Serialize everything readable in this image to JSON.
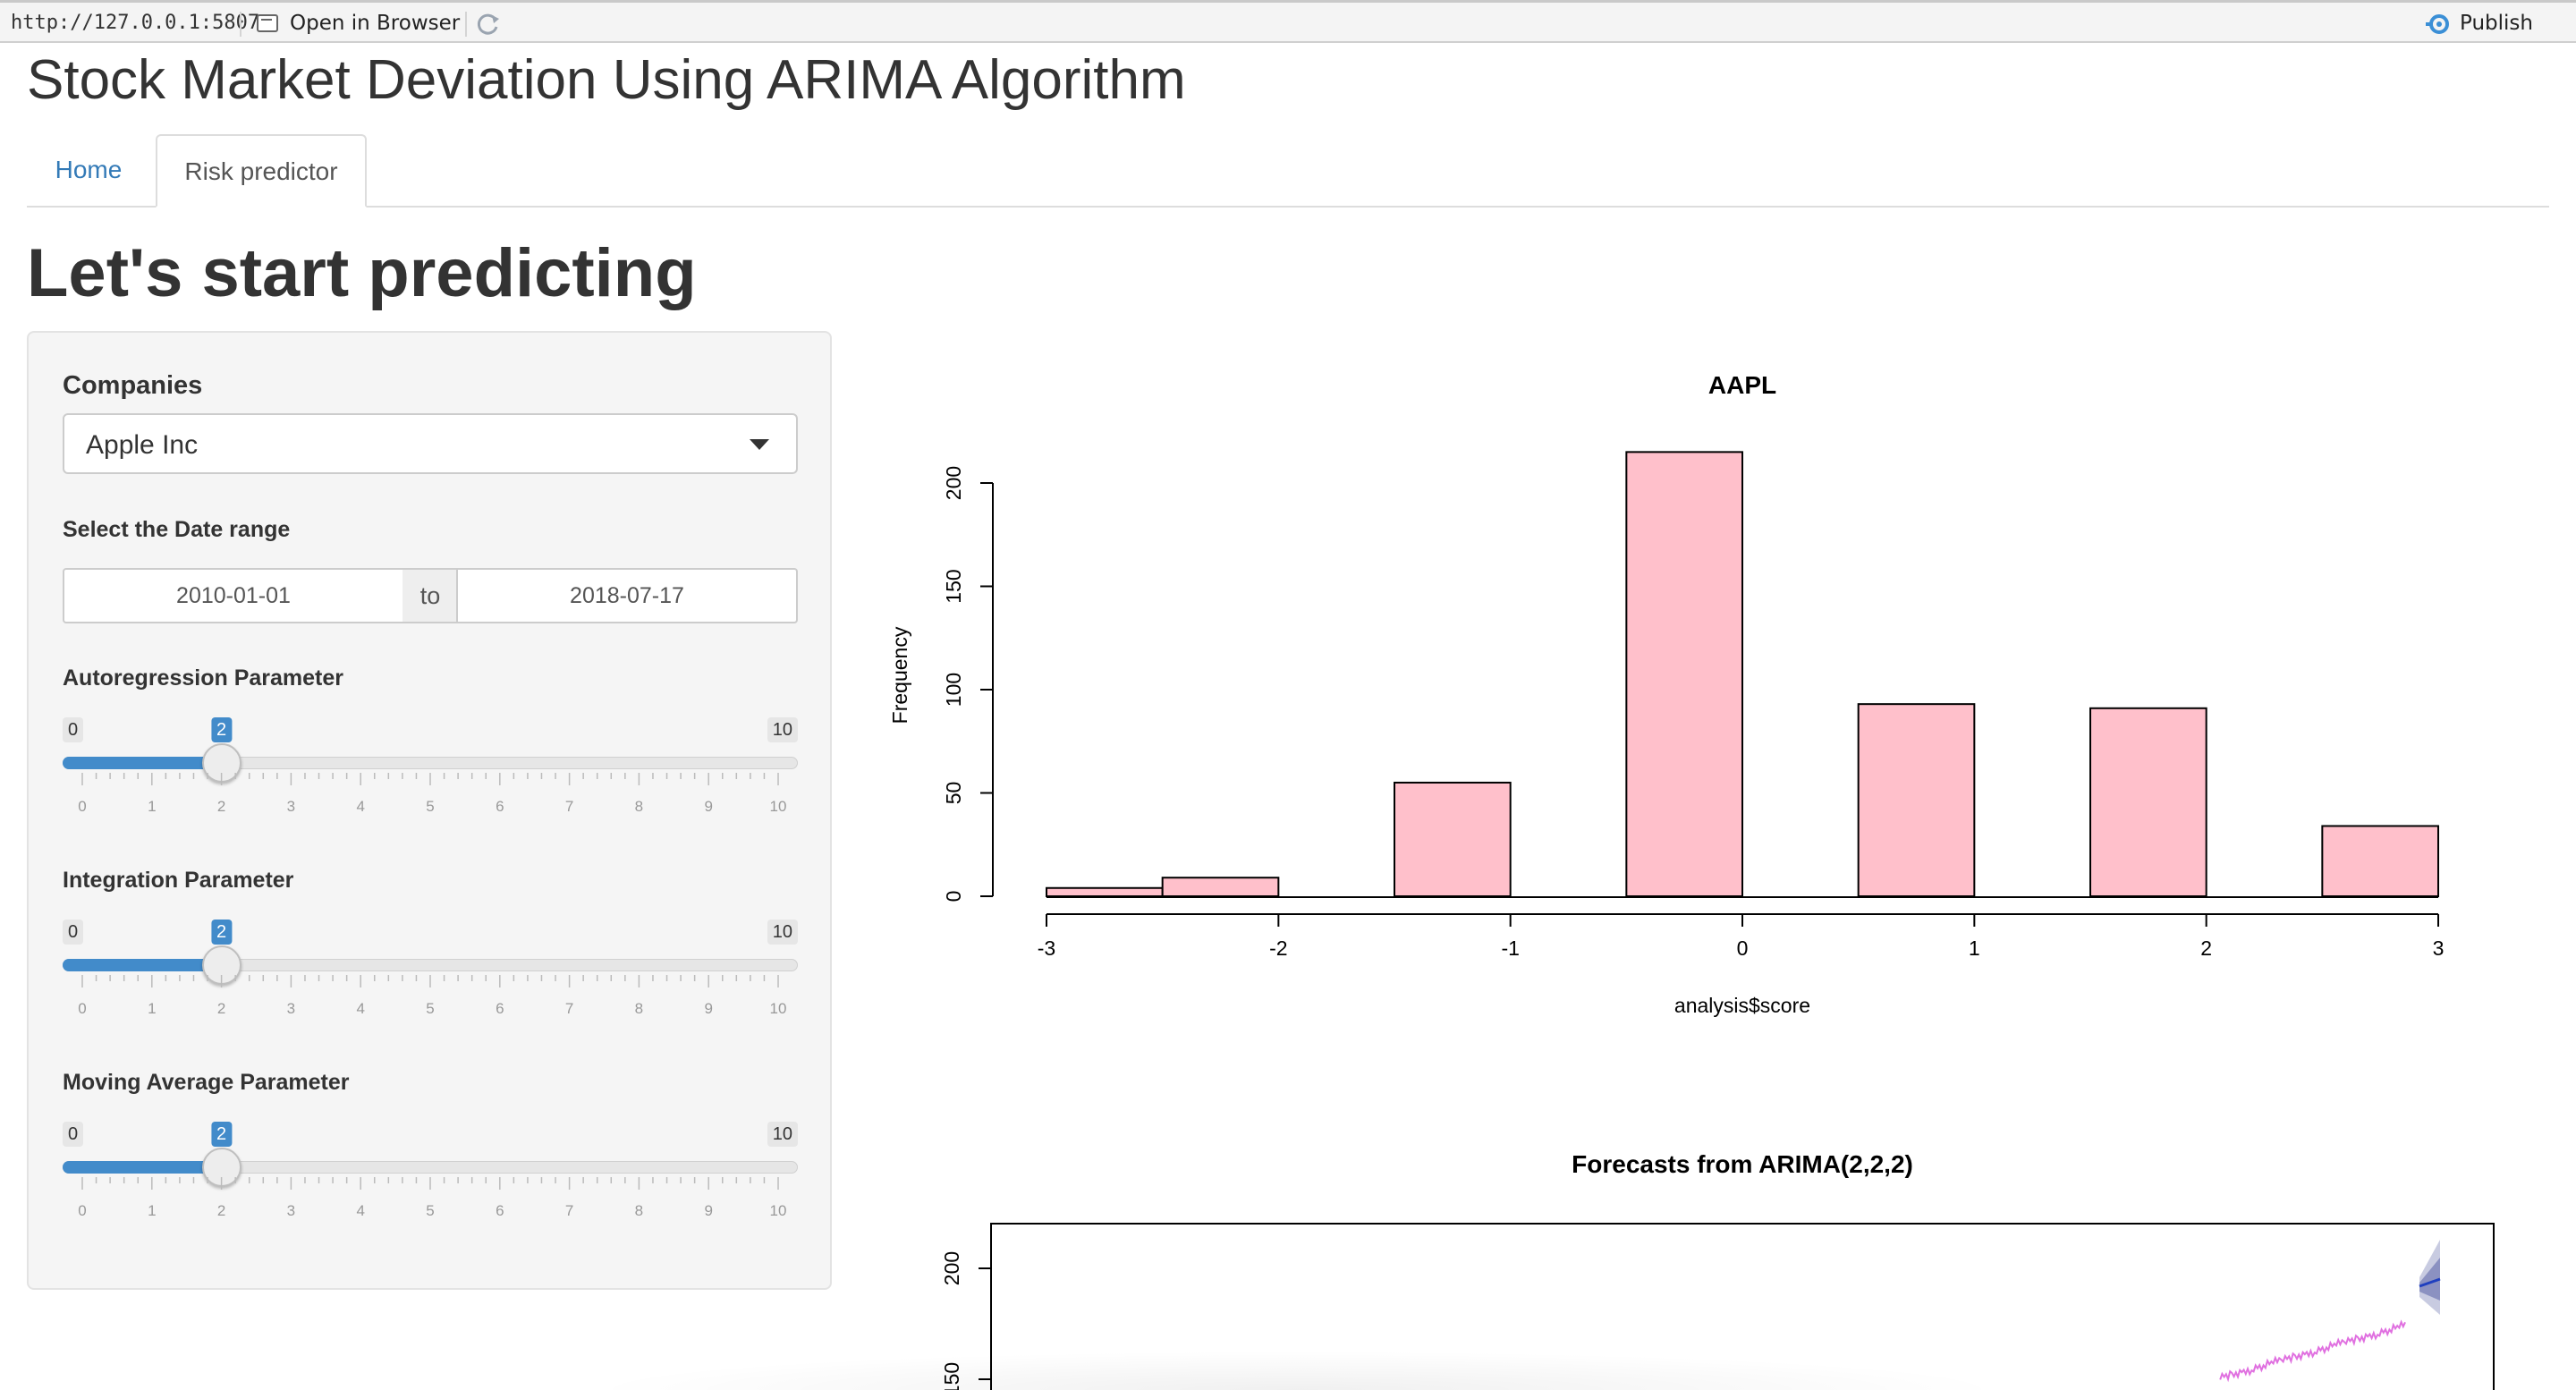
{
  "viewer": {
    "url": "http://127.0.0.1:5807",
    "open_in_browser": "Open in Browser",
    "publish": "Publish"
  },
  "app": {
    "title": "Stock Market Deviation Using ARIMA Algorithm",
    "tabs": [
      {
        "label": "Home",
        "active": false
      },
      {
        "label": "Risk predictor",
        "active": true
      }
    ],
    "page_heading": "Let's start predicting"
  },
  "sidebar": {
    "companies_label": "Companies",
    "company_selected": "Apple Inc",
    "date_label": "Select the Date range",
    "date_start": "2010-01-01",
    "date_sep": "to",
    "date_end": "2018-07-17",
    "sliders": [
      {
        "label": "Autoregression Parameter",
        "min": 0,
        "max": 10,
        "value": 2
      },
      {
        "label": "Integration Parameter",
        "min": 0,
        "max": 10,
        "value": 2
      },
      {
        "label": "Moving Average Parameter",
        "min": 0,
        "max": 10,
        "value": 2
      }
    ],
    "slider_ticks": [
      "0",
      "1",
      "2",
      "3",
      "4",
      "5",
      "6",
      "7",
      "8",
      "9",
      "10"
    ]
  },
  "colors": {
    "accent": "#428bca",
    "link": "#337ab7",
    "bar_fill": "#ffc0cb",
    "forecast_line": "#1f3fbf",
    "series_line": "#e070e0",
    "interval_band": "#9aa0c8"
  },
  "chart_data": [
    {
      "type": "bar",
      "title": "AAPL",
      "xlabel": "analysis$score",
      "ylabel": "Frequency",
      "bins": [
        {
          "x0": -3.0,
          "x1": -2.5,
          "value": 4
        },
        {
          "x0": -2.5,
          "x1": -2.0,
          "value": 9
        },
        {
          "x0": -1.5,
          "x1": -1.0,
          "value": 55
        },
        {
          "x0": -0.5,
          "x1": 0.0,
          "value": 215
        },
        {
          "x0": 0.5,
          "x1": 1.0,
          "value": 93
        },
        {
          "x0": 1.5,
          "x1": 2.0,
          "value": 91
        },
        {
          "x0": 2.5,
          "x1": 3.0,
          "value": 34
        }
      ],
      "xticks": [
        "-3",
        "-2",
        "-1",
        "0",
        "1",
        "2",
        "3"
      ],
      "yticks": [
        "0",
        "50",
        "100",
        "150",
        "200"
      ],
      "xlim": [
        -3,
        3
      ],
      "ylim": [
        0,
        215
      ]
    },
    {
      "type": "line",
      "title": "Forecasts from ARIMA(2,2,2)",
      "yticks_visible": [
        "200",
        "150"
      ]
    }
  ]
}
